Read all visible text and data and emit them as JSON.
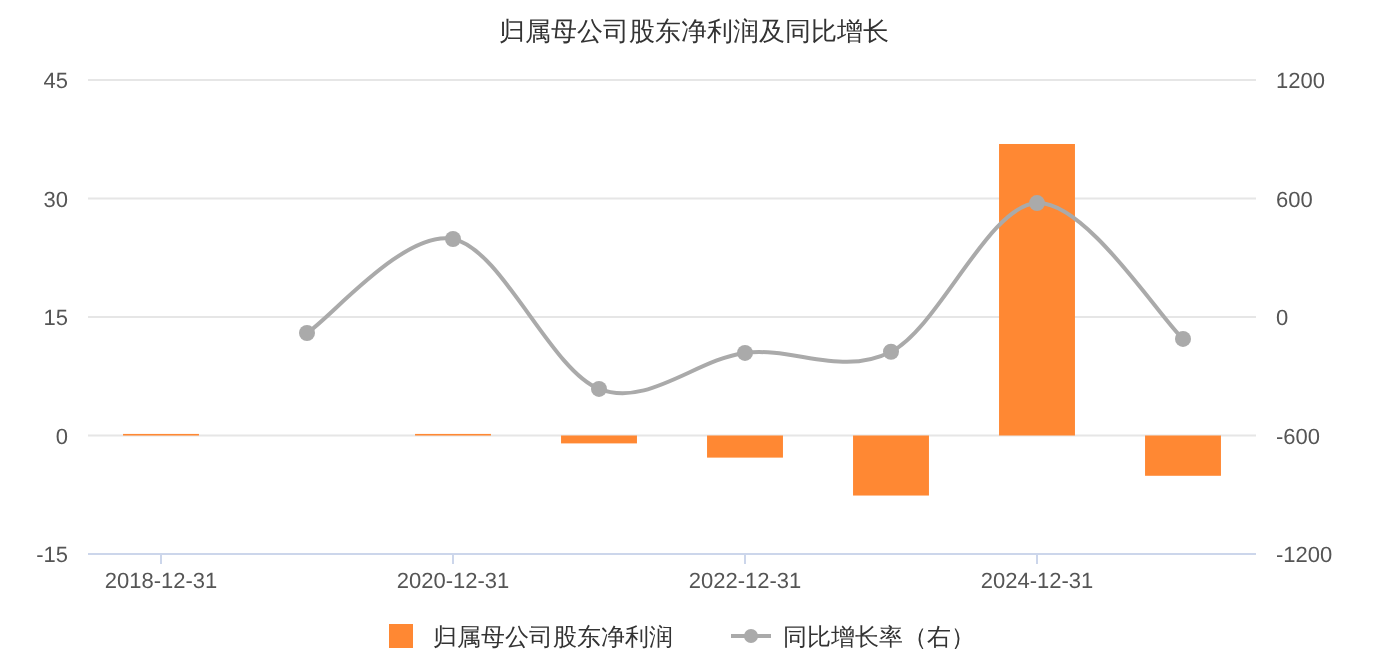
{
  "chart_data": {
    "type": "bar",
    "title": "归属母公司股东净利润及同比增长",
    "categories": [
      "2018-12-31",
      null,
      "2020-12-31",
      null,
      "2022-12-31",
      null,
      "2024-12-31",
      null
    ],
    "series": [
      {
        "name": "归属母公司股东净利润",
        "color": "#ff8833",
        "values": [
          0.2,
          null,
          0.2,
          -1.0,
          -2.8,
          -7.6,
          36.9,
          -5.1
        ]
      },
      {
        "name": "同比增长率（右）",
        "type": "line",
        "axis": "y2",
        "color": "#aaaaaa",
        "marker": "circle",
        "values": [
          null,
          -81,
          395,
          -364,
          -182,
          -176,
          577,
          -111
        ]
      }
    ],
    "ylim": [
      -15,
      45
    ],
    "yticks": [
      -15,
      0,
      15,
      30,
      45
    ],
    "y2lim": [
      -1200,
      1200
    ],
    "y2ticks": [
      -1200,
      -600,
      0,
      600,
      1200
    ],
    "grid": "y",
    "legend": "bottom"
  }
}
